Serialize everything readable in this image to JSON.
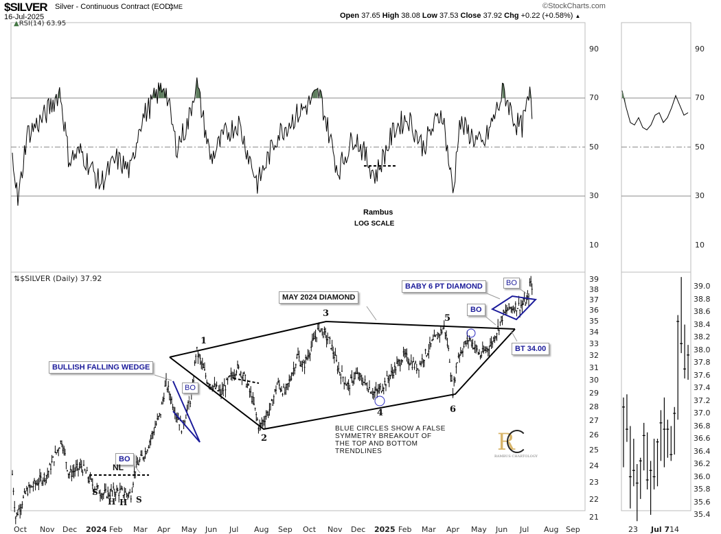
{
  "header": {
    "symbol": "$SILVER",
    "name": "Silver - Continuous Contract (EOD)",
    "exchange": "CME",
    "date": "16-Jul-2025",
    "watermark": "©StockCharts.com",
    "open_label": "Open",
    "open": "37.65",
    "high_label": "High",
    "high": "38.08",
    "low_label": "Low",
    "low": "37.53",
    "close_label": "Close",
    "close": "37.92",
    "chg_label": "Chg",
    "chg": "+0.22 (+0.58%)",
    "chg_icon": "up-triangle-icon"
  },
  "rsi_panel": {
    "label": "RSI(14) 63.95",
    "ticks": [
      "90",
      "70",
      "50",
      "30",
      "10"
    ]
  },
  "price_panel": {
    "label": "$SILVER (Daily) 37.92",
    "ticks": [
      "39",
      "38",
      "37",
      "36",
      "35",
      "34",
      "33",
      "32",
      "31",
      "30",
      "29",
      "28",
      "27",
      "26",
      "25",
      "24",
      "23",
      "22",
      "21"
    ]
  },
  "mini_panel": {
    "price_ticks": [
      "39.0",
      "38.8",
      "38.6",
      "38.4",
      "38.2",
      "38.0",
      "37.8",
      "37.6",
      "37.4",
      "37.2",
      "37.0",
      "36.8",
      "36.6",
      "36.4",
      "36.2",
      "36.0",
      "35.8",
      "35.6",
      "35.4"
    ],
    "rsi_ticks": [
      "90",
      "70",
      "50",
      "30",
      "10"
    ],
    "x_ticks": [
      "23",
      "Jul 7",
      "14"
    ]
  },
  "x_ticks": [
    "Oct",
    "Nov",
    "Dec",
    "2024",
    "Feb",
    "Mar",
    "Apr",
    "May",
    "Jun",
    "Jul",
    "Aug",
    "Sep",
    "Oct",
    "Nov",
    "Dec",
    "2025",
    "Feb",
    "Mar",
    "Apr",
    "May",
    "Jun",
    "Jul",
    "Aug",
    "Sep"
  ],
  "annotations": {
    "rambus": "Rambus",
    "log_scale": "LOG SCALE",
    "may_diamond": "MAY 2024 DIAMOND",
    "falling_wedge": "BULLISH FALLING WEDGE",
    "baby_diamond": "BABY 6 PT DIAMOND",
    "bo": "BO",
    "bt": "BT 34.00",
    "nl": "NL",
    "s": "S",
    "h": "H",
    "points": [
      "1",
      "2",
      "3",
      "4",
      "5",
      "6"
    ],
    "note": [
      "BLUE CIRCLES SHOW A FALSE",
      "SYMMETRY BREAKOUT OF",
      "THE TOP AND BOTTOM",
      "TRENDLINES"
    ],
    "logo": "RAMBUS CHARTOLOGY"
  },
  "colors": {
    "annotation_blue": "#1b1b9a",
    "rsi_overbought": "#5a7a5a",
    "rsi_oversold": "#7a4a4a",
    "logo_gold": "#d8b56a"
  },
  "chart_data": {
    "type": "ohlc",
    "title": "$SILVER Silver - Continuous Contract (EOD)",
    "yscale": "log",
    "ylim": [
      21,
      39
    ],
    "price_anchors": [
      [
        "2023-10-02",
        23.5
      ],
      [
        "2023-10-06",
        21.0
      ],
      [
        "2023-10-20",
        22.5
      ],
      [
        "2023-11-15",
        23.5
      ],
      [
        "2023-12-03",
        25.7
      ],
      [
        "2023-12-12",
        23.5
      ],
      [
        "2023-12-28",
        24.0
      ],
      [
        "2024-01-12",
        22.8
      ],
      [
        "2024-01-25",
        22.3
      ],
      [
        "2024-02-08",
        22.5
      ],
      [
        "2024-02-28",
        22.3
      ],
      [
        "2024-03-04",
        23.8
      ],
      [
        "2024-03-18",
        25.0
      ],
      [
        "2024-04-05",
        27.5
      ],
      [
        "2024-04-12",
        29.8
      ],
      [
        "2024-04-22",
        28.0
      ],
      [
        "2024-05-02",
        26.5
      ],
      [
        "2024-05-15",
        29.0
      ],
      [
        "2024-05-20",
        32.5
      ],
      [
        "2024-06-03",
        30.0
      ],
      [
        "2024-06-20",
        29.0
      ],
      [
        "2024-07-10",
        31.0
      ],
      [
        "2024-07-18",
        30.5
      ],
      [
        "2024-07-30",
        28.5
      ],
      [
        "2024-08-07",
        26.5
      ],
      [
        "2024-08-22",
        28.0
      ],
      [
        "2024-08-30",
        29.8
      ],
      [
        "2024-09-09",
        29.0
      ],
      [
        "2024-09-25",
        32.0
      ],
      [
        "2024-10-01",
        31.0
      ],
      [
        "2024-10-22",
        34.5
      ],
      [
        "2024-11-05",
        33.0
      ],
      [
        "2024-11-14",
        31.0
      ],
      [
        "2024-11-27",
        29.5
      ],
      [
        "2024-12-06",
        30.5
      ],
      [
        "2024-12-15",
        30.0
      ],
      [
        "2024-12-30",
        29.0
      ],
      [
        "2025-01-06",
        29.3
      ],
      [
        "2025-01-20",
        30.5
      ],
      [
        "2025-02-05",
        32.0
      ],
      [
        "2025-02-22",
        31.0
      ],
      [
        "2025-03-12",
        33.0
      ],
      [
        "2025-03-28",
        34.5
      ],
      [
        "2025-04-03",
        32.0
      ],
      [
        "2025-04-07",
        29.0
      ],
      [
        "2025-04-14",
        32.0
      ],
      [
        "2025-04-28",
        33.5
      ],
      [
        "2025-05-12",
        32.0
      ],
      [
        "2025-05-26",
        33.0
      ],
      [
        "2025-06-04",
        34.5
      ],
      [
        "2025-06-09",
        35.5
      ],
      [
        "2025-06-17",
        36.2
      ],
      [
        "2025-07-03",
        36.5
      ],
      [
        "2025-07-11",
        37.0
      ],
      [
        "2025-07-14",
        39.0
      ],
      [
        "2025-07-16",
        37.92
      ]
    ],
    "rsi_anchors": [
      [
        "2023-10-02",
        50
      ],
      [
        "2023-10-09",
        27
      ],
      [
        "2023-10-20",
        55
      ],
      [
        "2023-11-10",
        62
      ],
      [
        "2023-12-01",
        73
      ],
      [
        "2023-12-12",
        45
      ],
      [
        "2023-12-28",
        48
      ],
      [
        "2024-01-20",
        35
      ],
      [
        "2024-02-10",
        45
      ],
      [
        "2024-02-28",
        40
      ],
      [
        "2024-03-10",
        60
      ],
      [
        "2024-04-10",
        76
      ],
      [
        "2024-04-25",
        50
      ],
      [
        "2024-05-10",
        60
      ],
      [
        "2024-05-20",
        77
      ],
      [
        "2024-06-07",
        45
      ],
      [
        "2024-06-25",
        55
      ],
      [
        "2024-07-12",
        60
      ],
      [
        "2024-08-05",
        35
      ],
      [
        "2024-08-30",
        55
      ],
      [
        "2024-09-20",
        62
      ],
      [
        "2024-10-22",
        72
      ],
      [
        "2024-11-14",
        40
      ],
      [
        "2024-12-05",
        55
      ],
      [
        "2024-12-31",
        38
      ],
      [
        "2025-01-25",
        58
      ],
      [
        "2025-02-10",
        62
      ],
      [
        "2025-03-01",
        50
      ],
      [
        "2025-03-25",
        65
      ],
      [
        "2025-04-08",
        30
      ],
      [
        "2025-04-15",
        60
      ],
      [
        "2025-05-15",
        50
      ],
      [
        "2025-06-05",
        68
      ],
      [
        "2025-06-10",
        73
      ],
      [
        "2025-06-25",
        60
      ],
      [
        "2025-07-03",
        58
      ],
      [
        "2025-07-14",
        72
      ],
      [
        "2025-07-16",
        64
      ]
    ],
    "rsi_ylim": [
      0,
      100
    ],
    "rsi_levels": [
      70,
      50,
      30
    ],
    "mini_bars": [
      [
        37.25,
        36.15,
        37.1
      ],
      [
        37.3,
        36.55,
        36.75
      ],
      [
        36.8,
        35.5,
        36.0
      ],
      [
        36.6,
        35.85,
        36.1
      ],
      [
        36.2,
        35.3,
        35.9
      ],
      [
        36.3,
        35.65,
        36.25
      ],
      [
        36.85,
        36.1,
        36.65
      ],
      [
        36.7,
        35.8,
        35.95
      ],
      [
        36.25,
        35.4,
        36.1
      ],
      [
        36.6,
        35.8,
        36.0
      ],
      [
        36.6,
        35.85,
        36.55
      ],
      [
        37.05,
        36.25,
        36.85
      ],
      [
        37.25,
        36.15,
        36.75
      ],
      [
        36.9,
        36.3,
        36.75
      ],
      [
        36.8,
        36.25,
        36.35
      ],
      [
        37.1,
        36.35,
        37.0
      ],
      [
        38.55,
        36.9,
        38.45
      ],
      [
        39.15,
        37.95,
        38.1
      ],
      [
        38.4,
        37.55,
        37.7
      ],
      [
        38.08,
        37.53,
        37.92
      ]
    ],
    "mini_ylim": [
      35.3,
      39.2
    ],
    "mini_rsi": [
      73,
      66,
      60,
      59,
      62,
      58,
      57,
      59,
      63,
      64,
      60,
      62,
      66,
      71,
      67,
      63,
      64
    ]
  }
}
